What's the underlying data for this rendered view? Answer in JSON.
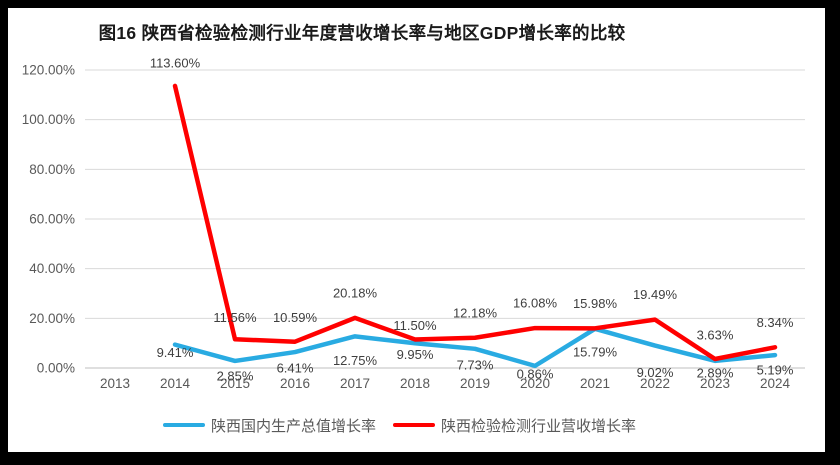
{
  "chart_data": {
    "type": "line",
    "title": "图16  陕西省检验检测行业年度营收增长率与地区GDP增长率的比较",
    "categories": [
      "2013",
      "2014",
      "2015",
      "2016",
      "2017",
      "2018",
      "2019",
      "2020",
      "2021",
      "2022",
      "2023",
      "2024"
    ],
    "series": [
      {
        "name": "陕西国内生产总值增长率",
        "color": "#29ABE2",
        "values": [
          null,
          9.41,
          2.85,
          6.41,
          12.75,
          9.95,
          7.73,
          0.86,
          15.79,
          9.02,
          2.89,
          5.19
        ]
      },
      {
        "name": "陕西检验检测行业营收增长率",
        "color": "#FF0000",
        "values": [
          null,
          113.6,
          11.56,
          10.59,
          20.18,
          11.5,
          12.18,
          16.08,
          15.98,
          19.49,
          3.63,
          8.34
        ]
      }
    ],
    "xlabel": "",
    "ylabel": "",
    "ylim": [
      0,
      120
    ],
    "ytick_step": 20,
    "ytick_labels": [
      "0.00%",
      "20.00%",
      "40.00%",
      "60.00%",
      "80.00%",
      "100.00%",
      "120.00%"
    ],
    "data_label_format": "0.00%",
    "grid": "horizontal",
    "legend_position": "bottom",
    "colors": {
      "gridline": "#D9D9D9",
      "axis_line": "#BFBFBF",
      "tick_text": "#595959",
      "data_label_text": "#3F3F3F",
      "frame": "#000000",
      "background": "#FFFFFF"
    }
  }
}
